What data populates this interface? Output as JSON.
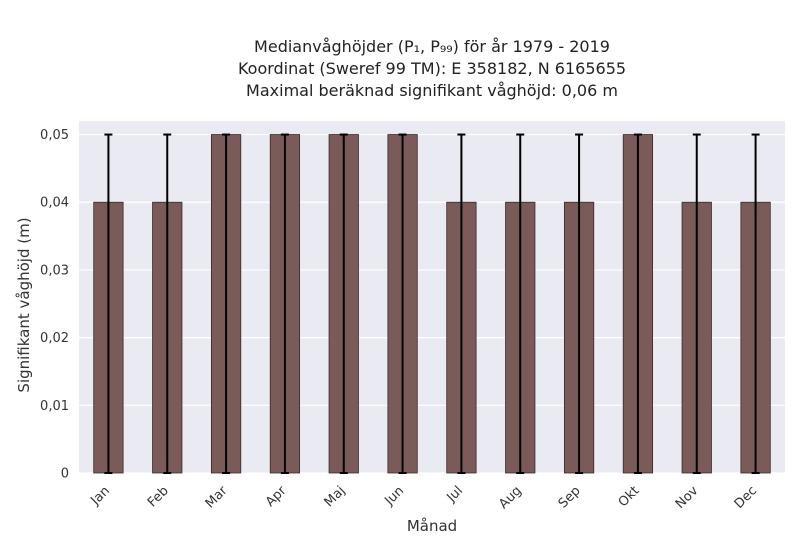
{
  "chart_data": {
    "type": "bar",
    "title_lines": [
      "Medianvåghöjder (P₁, P₉₉) för år 1979 - 2019",
      "Koordinat (Sweref 99 TM): E 358182, N 6165655",
      "Maximal beräknad signifikant våghöjd: 0,06 m"
    ],
    "xlabel": "Månad",
    "ylabel": "Signifikant våghöjd (m)",
    "categories": [
      "Jan",
      "Feb",
      "Mar",
      "Apr",
      "Maj",
      "Jun",
      "Jul",
      "Aug",
      "Sep",
      "Okt",
      "Nov",
      "Dec"
    ],
    "values": [
      0.04,
      0.04,
      0.05,
      0.05,
      0.05,
      0.05,
      0.04,
      0.04,
      0.04,
      0.05,
      0.04,
      0.04
    ],
    "error_low": [
      0,
      0,
      0,
      0,
      0,
      0,
      0,
      0,
      0,
      0,
      0,
      0
    ],
    "error_high": [
      0.05,
      0.05,
      0.05,
      0.05,
      0.05,
      0.05,
      0.05,
      0.05,
      0.05,
      0.05,
      0.05,
      0.05
    ],
    "ylim": [
      0,
      0.052
    ],
    "yticks": [
      0,
      0.01,
      0.02,
      0.03,
      0.04,
      0.05
    ],
    "ytick_labels": [
      "0",
      "0,01",
      "0,02",
      "0,03",
      "0,04",
      "0,05"
    ],
    "grid": true,
    "colors": {
      "bar": "#7b5a5a",
      "bar_edge": "#3a2a2a",
      "error_bar": "#000000",
      "plot_bg": "#eaeaf2",
      "grid": "#ffffff"
    }
  }
}
